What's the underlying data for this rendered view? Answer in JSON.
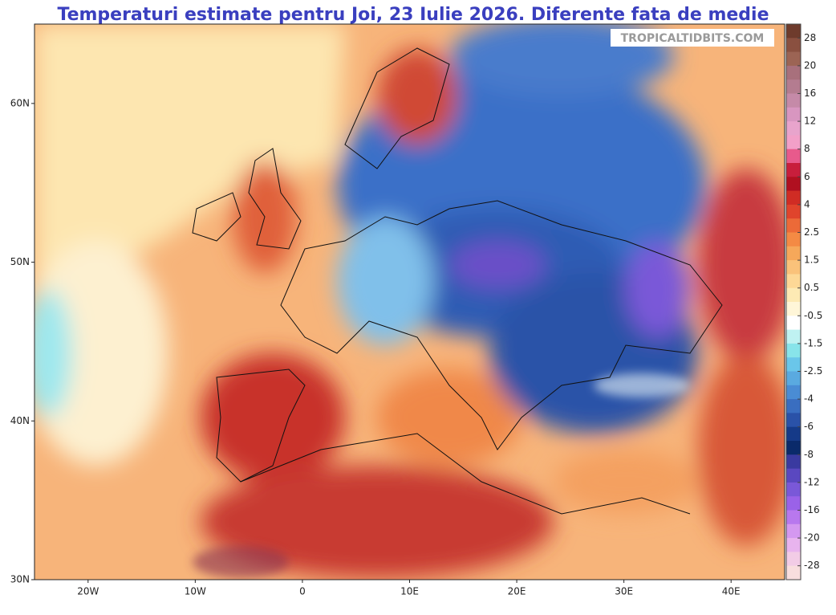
{
  "title": "Temperaturi estimate pentru Joi, 23 Iulie 2026. Diferente fata de medie",
  "watermark": "TROPICALTIDBITS.COM",
  "map": {
    "lonlim": [
      -25,
      45
    ],
    "latlim": [
      30,
      65
    ],
    "lat_ticks": [
      {
        "value": 30,
        "label": "30N"
      },
      {
        "value": 40,
        "label": "40N"
      },
      {
        "value": 50,
        "label": "50N"
      },
      {
        "value": 60,
        "label": "60N"
      }
    ],
    "lon_ticks": [
      {
        "value": -20,
        "label": "20W"
      },
      {
        "value": -10,
        "label": "10W"
      },
      0,
      {
        "value": 10,
        "label": "10E"
      },
      {
        "value": 20,
        "label": "20E"
      },
      {
        "value": 30,
        "label": "30E"
      },
      {
        "value": 40,
        "label": "40E"
      }
    ]
  },
  "colorbar": {
    "labels": [
      28,
      20,
      16,
      12,
      8,
      6,
      4,
      2.5,
      1.5,
      0.5,
      -0.5,
      -1.5,
      -2.5,
      -4,
      -6,
      -8,
      -12,
      -16,
      -20,
      -28
    ],
    "colors": [
      "#6e3b2c",
      "#8a5040",
      "#9c6454",
      "#a8707c",
      "#b47c90",
      "#c58aa8",
      "#d896c0",
      "#e8a4cc",
      "#f2a0c8",
      "#e85a8c",
      "#c81e3c",
      "#b01020",
      "#d02c24",
      "#e0442c",
      "#ec6a38",
      "#f48a44",
      "#f6a85a",
      "#fac27a",
      "#fdd896",
      "#fdeab4",
      "#fff6d8",
      "#ffffff",
      "#bff2f2",
      "#88e4ea",
      "#6ac6ea",
      "#5aaae0",
      "#4a8cd4",
      "#3a6ec0",
      "#2a52a8",
      "#153a88",
      "#0a2a6a",
      "#3a3aa0",
      "#5a48c0",
      "#7a58d8",
      "#9a62e8",
      "#b878ee",
      "#d498f0",
      "#e8b4ee",
      "#f2cce6",
      "#f8dede"
    ]
  }
}
